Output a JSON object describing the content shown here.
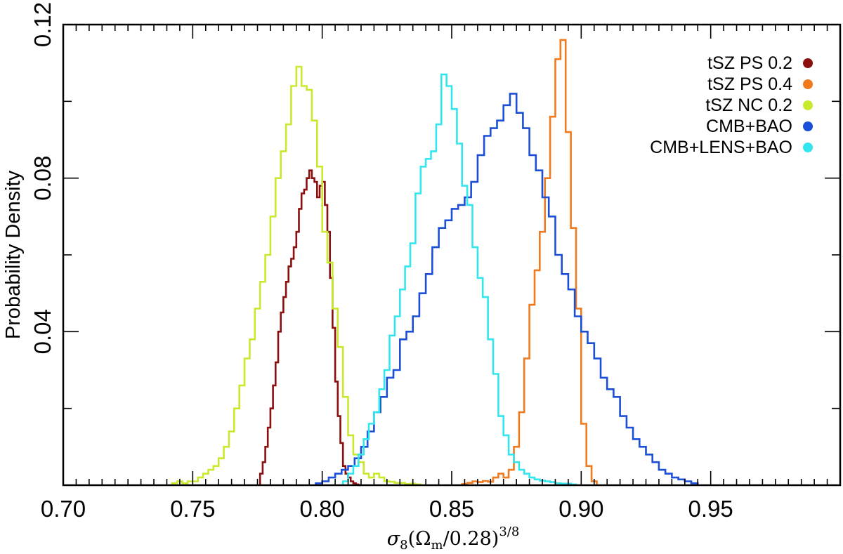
{
  "chart_data": {
    "type": "histogram-step",
    "title": "",
    "xlabel": {
      "sigma": "σ",
      "sub8": "8",
      "open": "(Ω",
      "subm": "m",
      "mid": "/0.28)",
      "sup": "3/8"
    },
    "ylabel": "Probability Density",
    "xlim": [
      0.7,
      1.0
    ],
    "ylim": [
      0.0,
      0.12
    ],
    "x_ticks": [
      {
        "value": 0.7,
        "label": "0.70"
      },
      {
        "value": 0.75,
        "label": "0.75"
      },
      {
        "value": 0.8,
        "label": "0.80"
      },
      {
        "value": 0.85,
        "label": "0.85"
      },
      {
        "value": 0.9,
        "label": "0.90"
      },
      {
        "value": 0.95,
        "label": "0.95"
      }
    ],
    "y_ticks": [
      {
        "value": 0.04,
        "label": "0.04"
      },
      {
        "value": 0.08,
        "label": "0.08"
      },
      {
        "value": 0.12,
        "label": "0.12"
      }
    ],
    "legend_position": "top-right",
    "series": [
      {
        "name": "tSZ PS 0.2",
        "color": "#8b0f0f",
        "bin_width": 0.001,
        "x": [
          0.776,
          0.777,
          0.778,
          0.779,
          0.78,
          0.781,
          0.782,
          0.783,
          0.784,
          0.785,
          0.786,
          0.787,
          0.788,
          0.789,
          0.79,
          0.791,
          0.792,
          0.793,
          0.794,
          0.795,
          0.796,
          0.797,
          0.798,
          0.799,
          0.8,
          0.801,
          0.802,
          0.803,
          0.804,
          0.805,
          0.806,
          0.807,
          0.808,
          0.809,
          0.81,
          0.811,
          0.812,
          0.813,
          0.814
        ],
        "y": [
          0.003,
          0.006,
          0.01,
          0.015,
          0.02,
          0.026,
          0.032,
          0.04,
          0.045,
          0.049,
          0.053,
          0.057,
          0.059,
          0.062,
          0.066,
          0.072,
          0.076,
          0.077,
          0.08,
          0.082,
          0.08,
          0.079,
          0.075,
          0.078,
          0.079,
          0.073,
          0.066,
          0.054,
          0.041,
          0.027,
          0.018,
          0.011,
          0.005,
          0.003,
          0.002,
          0.001,
          0.0005,
          0.0002,
          0.0
        ]
      },
      {
        "name": "tSZ PS 0.4",
        "color": "#f07a1e",
        "bin_width": 0.002,
        "x": [
          0.854,
          0.856,
          0.858,
          0.86,
          0.862,
          0.864,
          0.866,
          0.868,
          0.87,
          0.872,
          0.874,
          0.876,
          0.878,
          0.88,
          0.882,
          0.884,
          0.886,
          0.888,
          0.89,
          0.892,
          0.894,
          0.896,
          0.898,
          0.9,
          0.902,
          0.904
        ],
        "y": [
          0.0003,
          0.0006,
          0.001,
          0.0008,
          0.0011,
          0.0009,
          0.002,
          0.003,
          0.002,
          0.004,
          0.01,
          0.019,
          0.033,
          0.047,
          0.056,
          0.066,
          0.08,
          0.096,
          0.111,
          0.116,
          0.092,
          0.067,
          0.046,
          0.016,
          0.005,
          0.001
        ]
      },
      {
        "name": "tSZ NC 0.2",
        "color": "#c8ea2c",
        "bin_width": 0.002,
        "x": [
          0.742,
          0.744,
          0.746,
          0.748,
          0.75,
          0.752,
          0.754,
          0.756,
          0.758,
          0.76,
          0.762,
          0.764,
          0.766,
          0.768,
          0.77,
          0.772,
          0.774,
          0.776,
          0.778,
          0.78,
          0.782,
          0.784,
          0.786,
          0.788,
          0.79,
          0.792,
          0.794,
          0.796,
          0.798,
          0.8,
          0.802,
          0.804,
          0.806,
          0.808,
          0.81,
          0.812,
          0.814,
          0.816,
          0.818,
          0.82,
          0.822,
          0.824,
          0.826,
          0.828,
          0.83,
          0.832,
          0.834,
          0.836
        ],
        "y": [
          0.0005,
          0.001,
          0.0005,
          0.001,
          0.001,
          0.002,
          0.003,
          0.004,
          0.005,
          0.007,
          0.01,
          0.014,
          0.02,
          0.026,
          0.033,
          0.038,
          0.046,
          0.053,
          0.06,
          0.07,
          0.08,
          0.087,
          0.094,
          0.104,
          0.109,
          0.104,
          0.103,
          0.095,
          0.083,
          0.066,
          0.058,
          0.046,
          0.036,
          0.023,
          0.013,
          0.008,
          0.006,
          0.003,
          0.002,
          0.003,
          0.002,
          0.001,
          0.0009,
          0.0006,
          0.0006,
          0.0003,
          0.0004,
          0.0002
        ]
      },
      {
        "name": "CMB+BAO",
        "color": "#1c4fd8",
        "bin_width": 0.0025,
        "x": [
          0.7975,
          0.8,
          0.8025,
          0.805,
          0.8075,
          0.81,
          0.8125,
          0.815,
          0.8175,
          0.82,
          0.8225,
          0.825,
          0.8275,
          0.83,
          0.8325,
          0.835,
          0.8375,
          0.84,
          0.8425,
          0.845,
          0.8475,
          0.85,
          0.8525,
          0.855,
          0.8575,
          0.86,
          0.8625,
          0.865,
          0.8675,
          0.87,
          0.8725,
          0.875,
          0.8775,
          0.88,
          0.8825,
          0.885,
          0.8875,
          0.89,
          0.8925,
          0.895,
          0.8975,
          0.9,
          0.9025,
          0.905,
          0.9075,
          0.91,
          0.9125,
          0.915,
          0.9175,
          0.92,
          0.9225,
          0.925,
          0.9275,
          0.93,
          0.9325,
          0.935,
          0.9375,
          0.94,
          0.9425
        ],
        "y": [
          0.0005,
          0.001,
          0.002,
          0.003,
          0.004,
          0.005,
          0.007,
          0.01,
          0.014,
          0.019,
          0.023,
          0.028,
          0.03,
          0.038,
          0.04,
          0.044,
          0.05,
          0.055,
          0.062,
          0.067,
          0.069,
          0.072,
          0.073,
          0.075,
          0.079,
          0.086,
          0.091,
          0.093,
          0.095,
          0.099,
          0.102,
          0.097,
          0.093,
          0.086,
          0.082,
          0.075,
          0.07,
          0.06,
          0.055,
          0.051,
          0.044,
          0.04,
          0.037,
          0.033,
          0.028,
          0.025,
          0.023,
          0.018,
          0.015,
          0.012,
          0.01,
          0.008,
          0.006,
          0.004,
          0.003,
          0.002,
          0.0015,
          0.001,
          0.0005
        ]
      },
      {
        "name": "CMB+LENS+BAO",
        "color": "#33e6ee",
        "bin_width": 0.002,
        "x": [
          0.808,
          0.81,
          0.812,
          0.814,
          0.816,
          0.818,
          0.82,
          0.822,
          0.824,
          0.826,
          0.828,
          0.83,
          0.832,
          0.834,
          0.836,
          0.838,
          0.84,
          0.842,
          0.844,
          0.846,
          0.848,
          0.85,
          0.852,
          0.854,
          0.856,
          0.858,
          0.86,
          0.862,
          0.864,
          0.866,
          0.868,
          0.87,
          0.872,
          0.874,
          0.876,
          0.878,
          0.88,
          0.882,
          0.884,
          0.886,
          0.888,
          0.89,
          0.892,
          0.894,
          0.896
        ],
        "y": [
          0.001,
          0.003,
          0.005,
          0.008,
          0.012,
          0.016,
          0.019,
          0.025,
          0.03,
          0.039,
          0.044,
          0.051,
          0.057,
          0.063,
          0.076,
          0.083,
          0.085,
          0.087,
          0.094,
          0.107,
          0.104,
          0.098,
          0.089,
          0.078,
          0.073,
          0.062,
          0.054,
          0.049,
          0.038,
          0.029,
          0.018,
          0.013,
          0.008,
          0.006,
          0.004,
          0.003,
          0.002,
          0.0015,
          0.0012,
          0.001,
          0.0008,
          0.0005,
          0.0004,
          0.0004,
          0.0002
        ]
      }
    ]
  }
}
